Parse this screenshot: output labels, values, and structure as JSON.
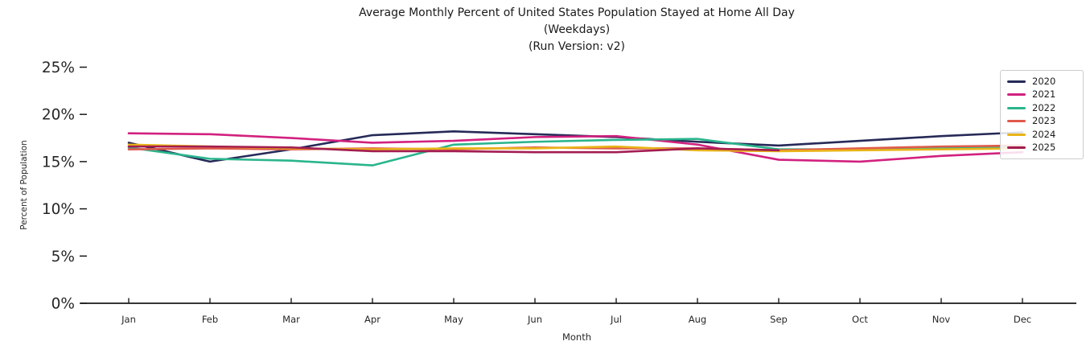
{
  "chart_data": {
    "type": "line",
    "title": "Average Monthly Percent of United States Population Stayed at Home All Day",
    "subtitle1": "(Weekdays)",
    "subtitle2": "(Run Version: v2)",
    "xlabel": "Month",
    "ylabel": "Percent of Population",
    "unit": "%",
    "categories": [
      "Jan",
      "Feb",
      "Mar",
      "Apr",
      "May",
      "Jun",
      "Jul",
      "Aug",
      "Sep",
      "Oct",
      "Nov",
      "Dec"
    ],
    "ytick_labels": [
      "0%",
      "5%",
      "10%",
      "15%",
      "20%",
      "25%"
    ],
    "ytick_values": [
      0,
      5,
      10,
      15,
      20,
      25
    ],
    "ylim": [
      0,
      25.6
    ],
    "grid": false,
    "legend_position": "upper right",
    "axis_color": "#1a1a1a",
    "tick_label_color": "#262626",
    "series": [
      {
        "name": "2020",
        "color": "#262a57",
        "values": [
          17.0,
          15.0,
          16.3,
          17.8,
          18.2,
          17.9,
          17.6,
          17.1,
          16.7,
          17.2,
          17.7,
          18.1
        ]
      },
      {
        "name": "2021",
        "color": "#d2217f",
        "values": [
          18.0,
          17.9,
          17.5,
          17.0,
          17.2,
          17.6,
          17.7,
          16.8,
          15.2,
          15.0,
          15.6,
          16.0
        ]
      },
      {
        "name": "2022",
        "color": "#2ab58c",
        "values": [
          16.5,
          15.3,
          15.1,
          14.6,
          16.8,
          17.1,
          17.3,
          17.4,
          16.3,
          16.3,
          16.4,
          16.5
        ]
      },
      {
        "name": "2023",
        "color": "#e05a4b",
        "values": [
          16.3,
          16.4,
          16.3,
          16.4,
          16.3,
          16.5,
          16.4,
          16.4,
          16.2,
          16.4,
          16.6,
          16.7
        ]
      },
      {
        "name": "2024",
        "color": "#e9b418",
        "values": [
          16.8,
          16.6,
          16.4,
          16.3,
          16.4,
          16.4,
          16.6,
          16.2,
          16.1,
          16.2,
          16.3,
          16.4
        ]
      },
      {
        "name": "2025",
        "color": "#a31d52",
        "values": [
          16.6,
          16.6,
          16.5,
          16.1,
          16.1,
          16.0,
          16.0,
          16.4,
          16.2
        ]
      }
    ]
  }
}
